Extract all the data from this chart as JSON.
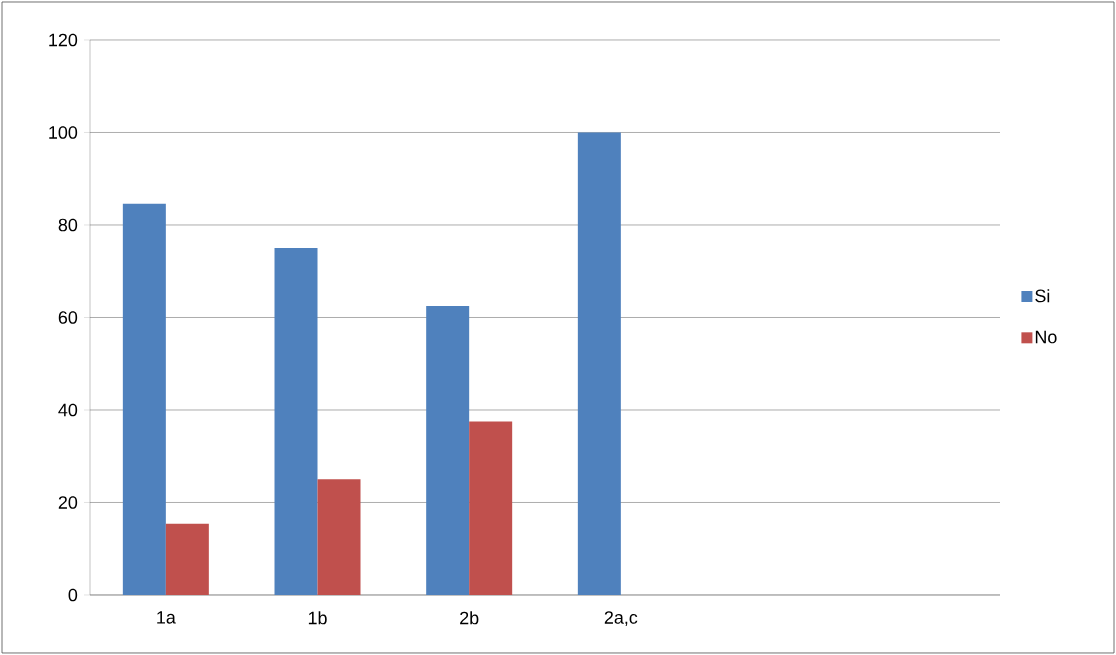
{
  "chart_data": {
    "type": "bar",
    "categories": [
      "1a",
      "1b",
      "2b",
      "2a,c",
      null,
      null
    ],
    "series": [
      {
        "name": "Si",
        "color": "#4f81bd",
        "values": [
          84.6,
          75,
          62.5,
          100,
          null,
          null
        ]
      },
      {
        "name": "No",
        "color": "#c0504d",
        "values": [
          15.4,
          25,
          37.5,
          null,
          null,
          null
        ]
      }
    ],
    "ylim": [
      0,
      120
    ],
    "yticks": [
      0,
      20,
      40,
      60,
      80,
      100,
      120
    ],
    "grid": "y",
    "legend": "right"
  }
}
